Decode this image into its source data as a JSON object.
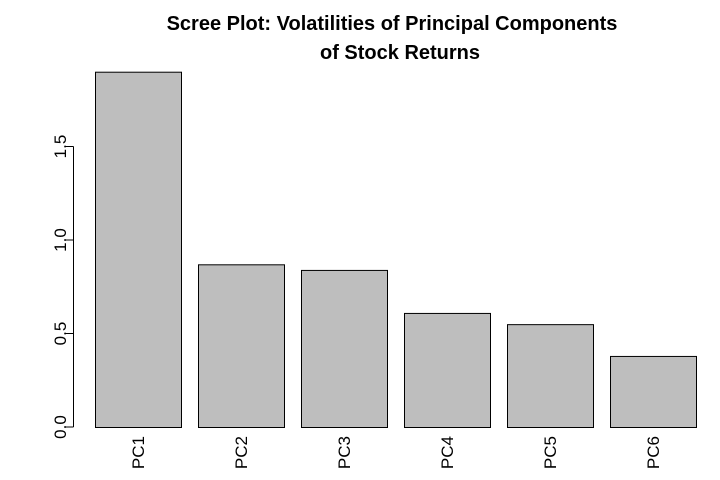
{
  "chart_data": {
    "type": "bar",
    "title_lines": [
      "Scree Plot: Volatilities of Principal Components",
      "of Stock Returns"
    ],
    "categories": [
      "PC1",
      "PC2",
      "PC3",
      "PC4",
      "PC5",
      "PC6"
    ],
    "values": [
      1.9,
      0.87,
      0.84,
      0.61,
      0.55,
      0.38
    ],
    "xlabel": "",
    "ylabel": "",
    "ylim": [
      0,
      1.9
    ],
    "y_ticks": [
      {
        "value": 0.0,
        "label": "0.0"
      },
      {
        "value": 0.5,
        "label": "0.5"
      },
      {
        "value": 1.0,
        "label": "1.0"
      },
      {
        "value": 1.5,
        "label": "1.5"
      }
    ],
    "bar_color": "#bebebe",
    "grid": false,
    "legend": "none"
  }
}
